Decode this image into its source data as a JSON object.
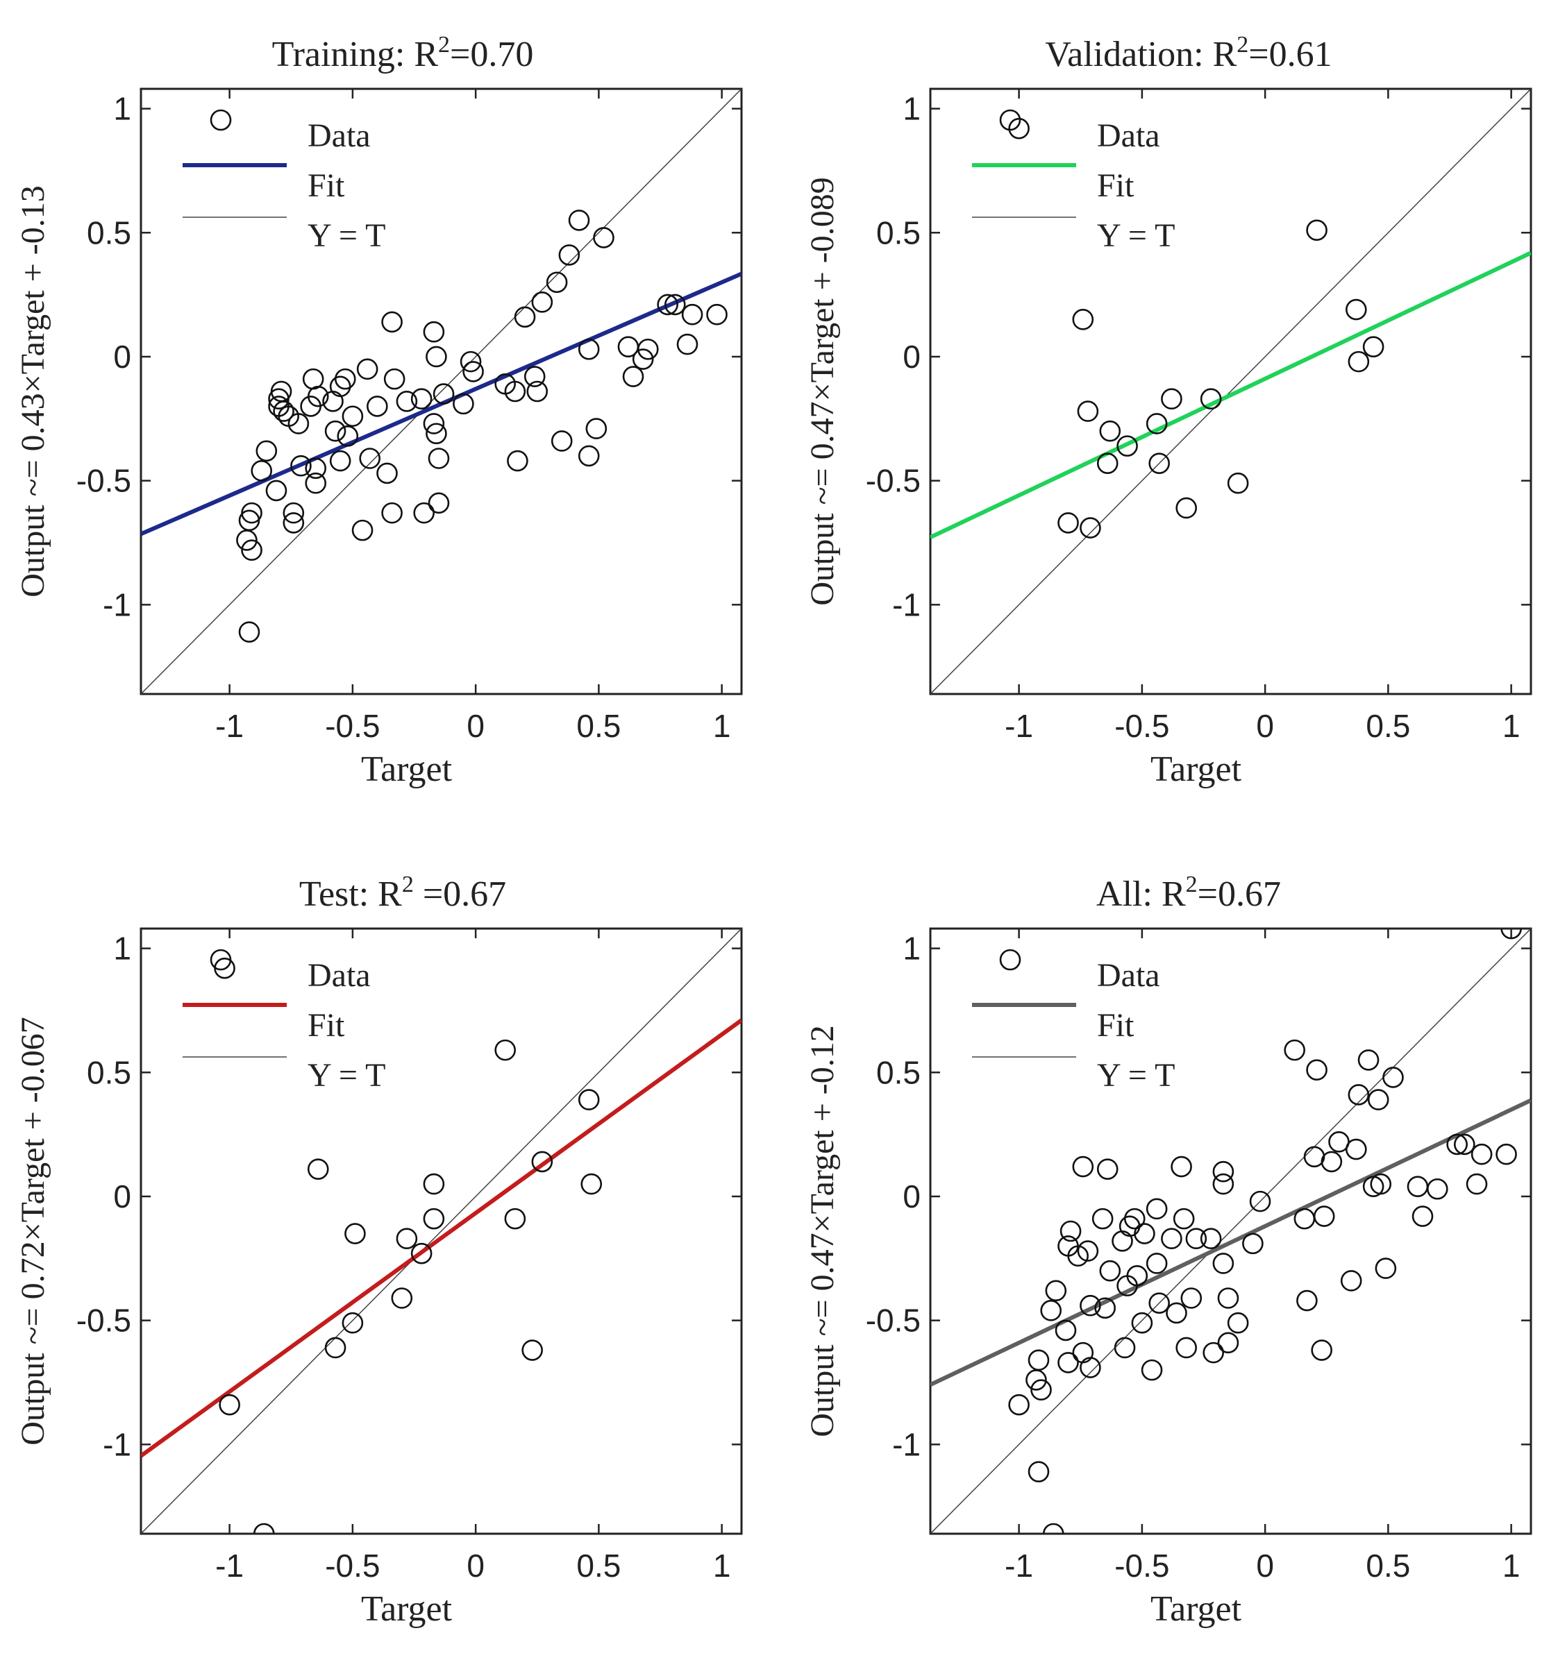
{
  "chart_data": [
    {
      "type": "scatter",
      "panel": "training",
      "title_prefix": "Training: R",
      "title_sup": "2",
      "title_suffix": "=0.70",
      "xlabel": "Target",
      "ylabel": "Output ~= 0.43×Target + -0.13",
      "xlim": [
        -1.36,
        1.08
      ],
      "ylim": [
        -1.36,
        1.08
      ],
      "xticks": [
        -1,
        -0.5,
        0,
        0.5,
        1
      ],
      "yticks": [
        -1,
        -0.5,
        0,
        0.5,
        1
      ],
      "fit": {
        "slope": 0.43,
        "intercept": -0.13,
        "color": "#1c2a8c"
      },
      "legend": [
        "Data",
        "Fit",
        "Y = T"
      ],
      "points": [
        [
          -0.93,
          -0.74
        ],
        [
          -0.92,
          -0.66
        ],
        [
          -0.91,
          -0.63
        ],
        [
          -0.91,
          -0.78
        ],
        [
          -0.92,
          -1.11
        ],
        [
          -0.87,
          -0.46
        ],
        [
          -0.85,
          -0.38
        ],
        [
          -0.81,
          -0.54
        ],
        [
          -0.8,
          -0.2
        ],
        [
          -0.8,
          -0.17
        ],
        [
          -0.79,
          -0.14
        ],
        [
          -0.78,
          -0.22
        ],
        [
          -0.76,
          -0.24
        ],
        [
          -0.74,
          -0.63
        ],
        [
          -0.74,
          -0.67
        ],
        [
          -0.72,
          -0.27
        ],
        [
          -0.71,
          -0.44
        ],
        [
          -0.67,
          -0.2
        ],
        [
          -0.66,
          -0.09
        ],
        [
          -0.65,
          -0.45
        ],
        [
          -0.65,
          -0.51
        ],
        [
          -0.64,
          -0.16
        ],
        [
          -0.58,
          -0.18
        ],
        [
          -0.57,
          -0.3
        ],
        [
          -0.55,
          -0.42
        ],
        [
          -0.55,
          -0.12
        ],
        [
          -0.53,
          -0.09
        ],
        [
          -0.52,
          -0.32
        ],
        [
          -0.5,
          -0.24
        ],
        [
          -0.46,
          -0.7
        ],
        [
          -0.44,
          -0.05
        ],
        [
          -0.43,
          -0.41
        ],
        [
          -0.4,
          -0.2
        ],
        [
          -0.36,
          -0.47
        ],
        [
          -0.34,
          0.14
        ],
        [
          -0.34,
          -0.63
        ],
        [
          -0.33,
          -0.09
        ],
        [
          -0.28,
          -0.18
        ],
        [
          -0.22,
          -0.17
        ],
        [
          -0.21,
          -0.63
        ],
        [
          -0.17,
          0.1
        ],
        [
          -0.17,
          -0.27
        ],
        [
          -0.16,
          -0.31
        ],
        [
          -0.16,
          0.0
        ],
        [
          -0.15,
          -0.41
        ],
        [
          -0.15,
          -0.59
        ],
        [
          -0.13,
          -0.15
        ],
        [
          -0.05,
          -0.19
        ],
        [
          -0.02,
          -0.02
        ],
        [
          -0.01,
          -0.06
        ],
        [
          0.12,
          -0.11
        ],
        [
          0.16,
          -0.14
        ],
        [
          0.17,
          -0.42
        ],
        [
          0.2,
          0.16
        ],
        [
          0.24,
          -0.08
        ],
        [
          0.25,
          -0.14
        ],
        [
          0.27,
          0.22
        ],
        [
          0.33,
          0.3
        ],
        [
          0.35,
          -0.34
        ],
        [
          0.38,
          0.41
        ],
        [
          0.42,
          0.55
        ],
        [
          0.46,
          0.03
        ],
        [
          0.46,
          -0.4
        ],
        [
          0.49,
          -0.29
        ],
        [
          0.52,
          0.48
        ],
        [
          0.62,
          0.04
        ],
        [
          0.64,
          -0.08
        ],
        [
          0.68,
          -0.01
        ],
        [
          0.7,
          0.03
        ],
        [
          0.78,
          0.21
        ],
        [
          0.81,
          0.21
        ],
        [
          0.86,
          0.05
        ],
        [
          0.88,
          0.17
        ],
        [
          0.98,
          0.17
        ]
      ]
    },
    {
      "type": "scatter",
      "panel": "validation",
      "title_prefix": "Validation: R",
      "title_sup": "2",
      "title_suffix": "=0.61",
      "xlabel": "Target",
      "ylabel": "Output ~= 0.47×Target + -0.089",
      "xlim": [
        -1.36,
        1.08
      ],
      "ylim": [
        -1.36,
        1.08
      ],
      "xticks": [
        -1,
        -0.5,
        0,
        0.5,
        1
      ],
      "yticks": [
        -1,
        -0.5,
        0,
        0.5,
        1
      ],
      "fit": {
        "slope": 0.47,
        "intercept": -0.089,
        "color": "#1fd25a"
      },
      "legend": [
        "Data",
        "Fit",
        "Y = T"
      ],
      "points": [
        [
          -1.0,
          0.92
        ],
        [
          -0.74,
          0.15
        ],
        [
          -0.72,
          -0.22
        ],
        [
          -0.8,
          -0.67
        ],
        [
          -0.71,
          -0.69
        ],
        [
          -0.63,
          -0.3
        ],
        [
          -0.64,
          -0.43
        ],
        [
          -0.56,
          -0.36
        ],
        [
          -0.44,
          -0.27
        ],
        [
          -0.43,
          -0.43
        ],
        [
          -0.38,
          -0.17
        ],
        [
          -0.32,
          -0.61
        ],
        [
          -0.22,
          -0.17
        ],
        [
          -0.11,
          -0.51
        ],
        [
          0.21,
          0.51
        ],
        [
          0.37,
          0.19
        ],
        [
          0.38,
          -0.02
        ],
        [
          0.44,
          0.04
        ]
      ]
    },
    {
      "type": "scatter",
      "panel": "test",
      "title_prefix": "Test: R",
      "title_sup": "2",
      "title_suffix": "  =0.67",
      "xlabel": "Target",
      "ylabel": "Output ~= 0.72×Target + -0.067",
      "xlim": [
        -1.36,
        1.08
      ],
      "ylim": [
        -1.36,
        1.08
      ],
      "xticks": [
        -1,
        -0.5,
        0,
        0.5,
        1
      ],
      "yticks": [
        -1,
        -0.5,
        0,
        0.5,
        1
      ],
      "fit": {
        "slope": 0.72,
        "intercept": -0.067,
        "color": "#c41c1c"
      },
      "legend": [
        "Data",
        "Fit",
        "Y = T"
      ],
      "points": [
        [
          -1.02,
          0.92
        ],
        [
          -1.0,
          -0.84
        ],
        [
          -0.86,
          -1.36
        ],
        [
          -0.64,
          0.11
        ],
        [
          -0.57,
          -0.61
        ],
        [
          -0.5,
          -0.51
        ],
        [
          -0.49,
          -0.15
        ],
        [
          -0.3,
          -0.41
        ],
        [
          -0.28,
          -0.17
        ],
        [
          -0.22,
          -0.23
        ],
        [
          -0.17,
          0.05
        ],
        [
          -0.17,
          -0.09
        ],
        [
          0.12,
          0.59
        ],
        [
          0.16,
          -0.09
        ],
        [
          0.23,
          -0.62
        ],
        [
          0.27,
          0.14
        ],
        [
          0.46,
          0.39
        ],
        [
          0.47,
          0.05
        ]
      ]
    },
    {
      "type": "scatter",
      "panel": "all",
      "title_prefix": "All: R",
      "title_sup": "2",
      "title_suffix": "=0.67",
      "xlabel": "Target",
      "ylabel": "Output ~= 0.47×Target + -0.12",
      "xlim": [
        -1.36,
        1.08
      ],
      "ylim": [
        -1.36,
        1.08
      ],
      "xticks": [
        -1,
        -0.5,
        0,
        0.5,
        1
      ],
      "yticks": [
        -1,
        -0.5,
        0,
        0.5,
        1
      ],
      "fit": {
        "slope": 0.47,
        "intercept": -0.12,
        "color": "#5f5f5f"
      },
      "legend": [
        "Data",
        "Fit",
        "Y = T"
      ],
      "points": [
        [
          -1.0,
          -0.84
        ],
        [
          -0.93,
          -0.74
        ],
        [
          -0.92,
          -0.66
        ],
        [
          -0.91,
          -0.78
        ],
        [
          -0.92,
          -1.11
        ],
        [
          -0.86,
          -1.36
        ],
        [
          -0.87,
          -0.46
        ],
        [
          -0.85,
          -0.38
        ],
        [
          -0.81,
          -0.54
        ],
        [
          -0.8,
          -0.2
        ],
        [
          -0.79,
          -0.14
        ],
        [
          -0.8,
          -0.67
        ],
        [
          -0.76,
          -0.24
        ],
        [
          -0.74,
          -0.63
        ],
        [
          -0.74,
          0.12
        ],
        [
          -0.72,
          -0.22
        ],
        [
          -0.71,
          -0.44
        ],
        [
          -0.71,
          -0.69
        ],
        [
          -0.66,
          -0.09
        ],
        [
          -0.65,
          -0.45
        ],
        [
          -0.64,
          0.11
        ],
        [
          -0.63,
          -0.3
        ],
        [
          -0.58,
          -0.18
        ],
        [
          -0.57,
          -0.61
        ],
        [
          -0.56,
          -0.36
        ],
        [
          -0.55,
          -0.12
        ],
        [
          -0.53,
          -0.09
        ],
        [
          -0.52,
          -0.32
        ],
        [
          -0.5,
          -0.51
        ],
        [
          -0.49,
          -0.15
        ],
        [
          -0.46,
          -0.7
        ],
        [
          -0.44,
          -0.27
        ],
        [
          -0.43,
          -0.43
        ],
        [
          -0.44,
          -0.05
        ],
        [
          -0.38,
          -0.17
        ],
        [
          -0.36,
          -0.47
        ],
        [
          -0.34,
          0.12
        ],
        [
          -0.33,
          -0.09
        ],
        [
          -0.32,
          -0.61
        ],
        [
          -0.3,
          -0.41
        ],
        [
          -0.28,
          -0.17
        ],
        [
          -0.22,
          -0.17
        ],
        [
          -0.21,
          -0.63
        ],
        [
          -0.17,
          0.1
        ],
        [
          -0.17,
          0.05
        ],
        [
          -0.17,
          -0.27
        ],
        [
          -0.15,
          -0.41
        ],
        [
          -0.15,
          -0.59
        ],
        [
          -0.11,
          -0.51
        ],
        [
          -0.05,
          -0.19
        ],
        [
          -0.02,
          -0.02
        ],
        [
          0.12,
          0.59
        ],
        [
          0.16,
          -0.09
        ],
        [
          0.17,
          -0.42
        ],
        [
          0.2,
          0.16
        ],
        [
          0.21,
          0.51
        ],
        [
          0.23,
          -0.62
        ],
        [
          0.24,
          -0.08
        ],
        [
          0.27,
          0.14
        ],
        [
          0.3,
          0.22
        ],
        [
          0.35,
          -0.34
        ],
        [
          0.37,
          0.19
        ],
        [
          0.38,
          0.41
        ],
        [
          0.42,
          0.55
        ],
        [
          0.44,
          0.04
        ],
        [
          0.46,
          0.39
        ],
        [
          0.47,
          0.05
        ],
        [
          0.49,
          -0.29
        ],
        [
          0.52,
          0.48
        ],
        [
          0.62,
          0.04
        ],
        [
          0.64,
          -0.08
        ],
        [
          0.7,
          0.03
        ],
        [
          0.78,
          0.21
        ],
        [
          0.81,
          0.21
        ],
        [
          0.86,
          0.05
        ],
        [
          0.88,
          0.17
        ],
        [
          0.98,
          0.17
        ],
        [
          1.0,
          1.08
        ]
      ]
    }
  ]
}
